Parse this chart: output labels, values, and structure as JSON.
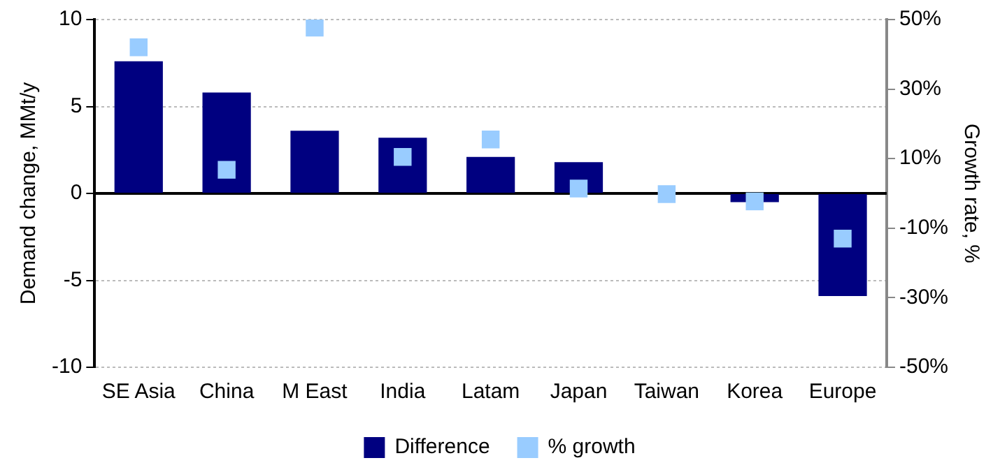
{
  "chart_data": {
    "type": "bar",
    "categories": [
      "SE Asia",
      "China",
      "M East",
      "India",
      "Latam",
      "Japan",
      "Taiwan",
      "Korea",
      "Europe"
    ],
    "ylabel": "Demand change, MMt/y",
    "y2label": "Growth rate, %",
    "series": [
      {
        "name": "Difference",
        "color": "#000080",
        "values": [
          7.6,
          5.8,
          3.6,
          3.2,
          2.1,
          1.8,
          0,
          -0.5,
          -5.9
        ]
      },
      {
        "name": "% growth",
        "type": "scatter",
        "axis": "y2",
        "color": "#99ccff",
        "marker": "square",
        "values": [
          42,
          6.8,
          47.7,
          10.5,
          15.5,
          1.4,
          -0.2,
          -2.3,
          -13
        ]
      }
    ],
    "ylim": [
      -10,
      10
    ],
    "yticks": [
      -10,
      -5,
      0,
      5,
      10
    ],
    "y2lim": [
      -50,
      50
    ],
    "y2ticks": [
      {
        "value": -50,
        "label": "-50%"
      },
      {
        "value": -30,
        "label": "-30%"
      },
      {
        "value": -10,
        "label": "-10%"
      },
      {
        "value": 10,
        "label": "10%"
      },
      {
        "value": 30,
        "label": "30%"
      },
      {
        "value": 50,
        "label": "50%"
      }
    ],
    "ref_lines": [
      {
        "axis": "y",
        "value": 0,
        "color": "#000000",
        "line_style": "solid"
      }
    ],
    "grid": "y",
    "legend": "bottom"
  }
}
